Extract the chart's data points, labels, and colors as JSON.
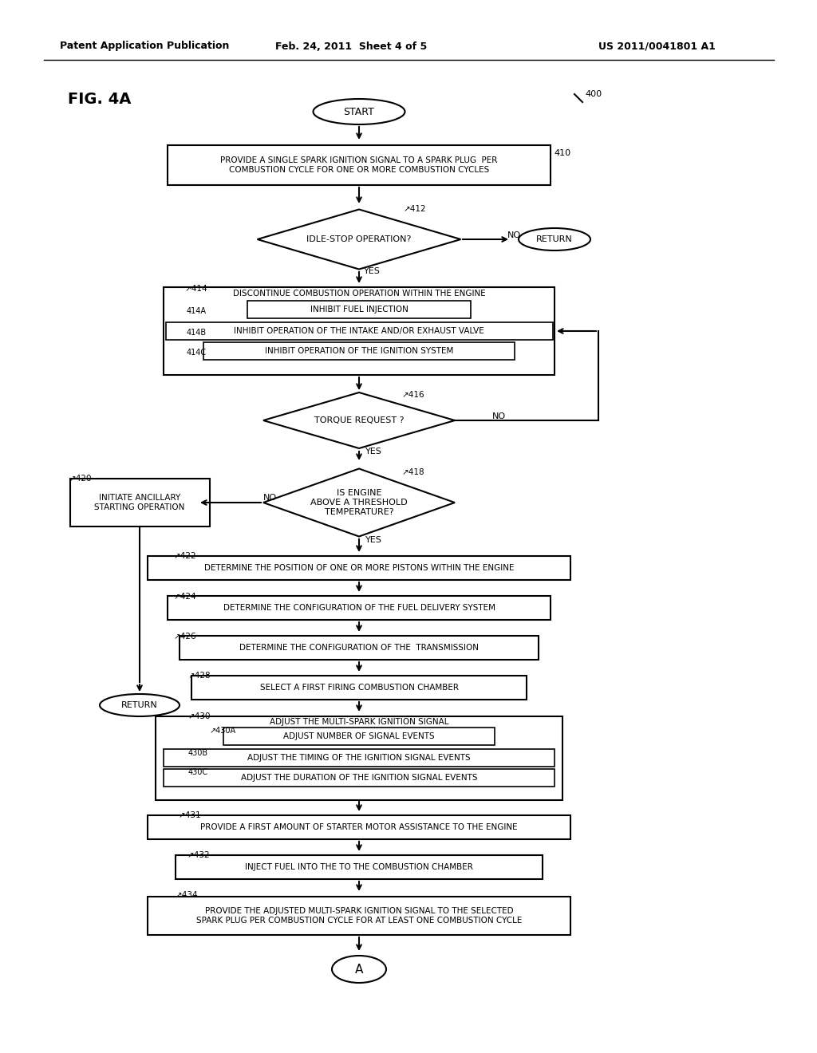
{
  "header_left": "Patent Application Publication",
  "header_mid": "Feb. 24, 2011  Sheet 4 of 5",
  "header_right": "US 2011/0041801 A1",
  "fig_label": "FIG. 4A",
  "background_color": "#ffffff"
}
